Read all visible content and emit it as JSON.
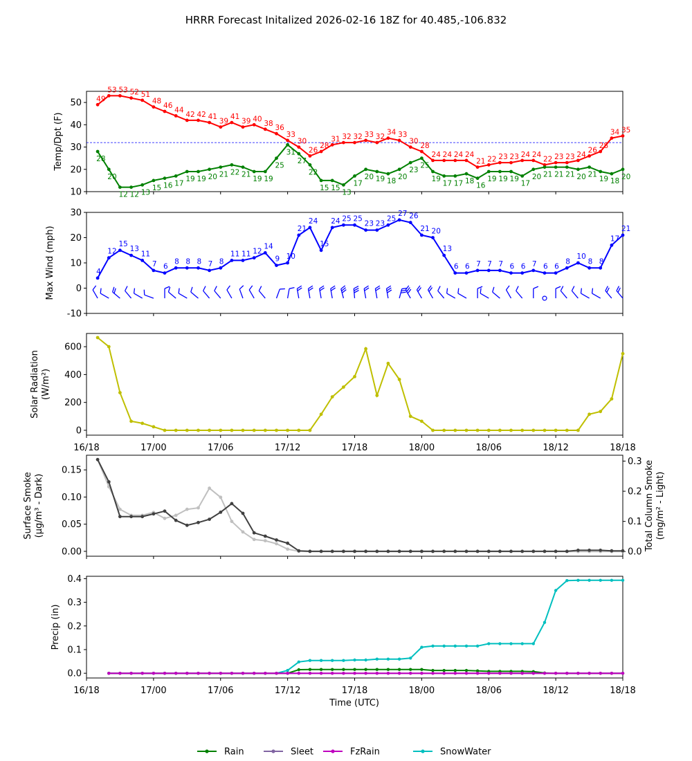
{
  "figure": {
    "title": "HRRR Forecast Initalized 2026-02-16 18Z for 40.485,-106.832",
    "x_axis_label": "Time (UTC)",
    "x_tick_labels": [
      "16/18",
      "17/00",
      "17/06",
      "17/12",
      "17/18",
      "18/00",
      "18/06",
      "18/12",
      "18/18"
    ],
    "x_range_hours": [
      0,
      48
    ]
  },
  "colors": {
    "temp": "#ff0000",
    "dewpoint": "#008000",
    "freezing_line": "#0000ff",
    "wind": "#0000ff",
    "solar": "#bfbf00",
    "smoke_dark": "#404040",
    "smoke_light": "#c0c0c0",
    "rain": "#008000",
    "sleet": "#8064a2",
    "fzrain": "#bf00bf",
    "snowwater": "#00bfbf"
  },
  "chart_data": [
    {
      "type": "line",
      "id": "temp",
      "ylabel": "Temp/Dpt (F)",
      "ylim": [
        10,
        55
      ],
      "yticks": [
        10,
        20,
        30,
        40,
        50
      ],
      "x_hours": [
        1,
        2,
        3,
        4,
        5,
        6,
        7,
        8,
        9,
        10,
        11,
        12,
        13,
        14,
        15,
        16,
        17,
        18,
        19,
        20,
        21,
        22,
        23,
        24,
        25,
        26,
        27,
        28,
        29,
        30,
        31,
        32,
        33,
        34,
        35,
        36,
        37,
        38,
        39,
        40,
        41,
        42,
        43,
        44,
        45,
        46,
        47,
        48
      ],
      "series": [
        {
          "name": "Temperature",
          "values": [
            49,
            53,
            53,
            52,
            51,
            48,
            46,
            44,
            42,
            42,
            41,
            39,
            41,
            39,
            40,
            38,
            36,
            33,
            30,
            26,
            28,
            31,
            32,
            32,
            33,
            32,
            34,
            33,
            30,
            28,
            24,
            24,
            24,
            24,
            21,
            22,
            23,
            23,
            24,
            24,
            22,
            23,
            23,
            24,
            26,
            28,
            34,
            35
          ]
        },
        {
          "name": "Dewpoint",
          "values": [
            28,
            20,
            12,
            12,
            13,
            15,
            16,
            17,
            19,
            19,
            20,
            21,
            22,
            21,
            19,
            19,
            25,
            31,
            27,
            22,
            15,
            15,
            13,
            17,
            20,
            19,
            18,
            20,
            23,
            25,
            19,
            17,
            17,
            18,
            16,
            19,
            19,
            19,
            17,
            20,
            21,
            21,
            21,
            20,
            21,
            19,
            18,
            20
          ]
        }
      ],
      "reference_line": {
        "value": 32,
        "style": "dashed"
      }
    },
    {
      "type": "line",
      "id": "wind",
      "ylabel": "Max Wind (mph)",
      "ylim": [
        -10,
        30
      ],
      "yticks": [
        -10,
        0,
        10,
        20,
        30
      ],
      "x_hours": [
        1,
        2,
        3,
        4,
        5,
        6,
        7,
        8,
        9,
        10,
        11,
        12,
        13,
        14,
        15,
        16,
        17,
        18,
        19,
        20,
        21,
        22,
        23,
        24,
        25,
        26,
        27,
        28,
        29,
        30,
        31,
        32,
        33,
        34,
        35,
        36,
        37,
        38,
        39,
        40,
        41,
        42,
        43,
        44,
        45,
        46,
        47,
        48
      ],
      "series": [
        {
          "name": "Max Wind",
          "values": [
            4,
            12,
            15,
            13,
            11,
            7,
            6,
            8,
            8,
            8,
            7,
            8,
            11,
            11,
            12,
            14,
            9,
            10,
            21,
            24,
            15,
            24,
            25,
            25,
            23,
            23,
            25,
            27,
            26,
            21,
            20,
            13,
            6,
            6,
            7,
            7,
            7,
            6,
            6,
            7,
            6,
            6,
            8,
            10,
            8,
            8,
            17,
            21
          ]
        }
      ],
      "wind_barbs_note": "wind direction barbs drawn along y=-4"
    },
    {
      "type": "line",
      "id": "solar",
      "ylabel": "Solar Radiation (W/m²)",
      "ylim": [
        -35,
        695
      ],
      "yticks": [
        0,
        200,
        400,
        600
      ],
      "x_hours": [
        1,
        2,
        3,
        4,
        5,
        6,
        7,
        8,
        9,
        10,
        11,
        12,
        13,
        14,
        15,
        16,
        17,
        18,
        19,
        20,
        21,
        22,
        23,
        24,
        25,
        26,
        27,
        28,
        29,
        30,
        31,
        32,
        33,
        34,
        35,
        36,
        37,
        38,
        39,
        40,
        41,
        42,
        43,
        44,
        45,
        46,
        47,
        48
      ],
      "series": [
        {
          "name": "Solar Radiation",
          "values": [
            665,
            600,
            270,
            65,
            50,
            25,
            0,
            0,
            0,
            0,
            0,
            0,
            0,
            0,
            0,
            0,
            0,
            0,
            0,
            0,
            115,
            240,
            310,
            385,
            585,
            250,
            480,
            365,
            100,
            65,
            0,
            0,
            0,
            0,
            0,
            0,
            0,
            0,
            0,
            0,
            0,
            0,
            0,
            0,
            115,
            135,
            225,
            550
          ]
        }
      ]
    },
    {
      "type": "line",
      "id": "smoke",
      "ylabel": "Surface Smoke (μg/m³ - Dark)",
      "ylabel_right": "Total Column Smoke (mg/m² - Light)",
      "ylim": [
        -0.009,
        0.177
      ],
      "yticks": [
        0.0,
        0.05,
        0.1,
        0.15
      ],
      "ylim_right": [
        -0.0155,
        0.3195
      ],
      "yticks_right": [
        0.0,
        0.1,
        0.2,
        0.3
      ],
      "x_hours": [
        1,
        2,
        3,
        4,
        5,
        6,
        7,
        8,
        9,
        10,
        11,
        12,
        13,
        14,
        15,
        16,
        17,
        18,
        19,
        20,
        21,
        22,
        23,
        24,
        25,
        26,
        27,
        28,
        29,
        30,
        31,
        32,
        33,
        34,
        35,
        36,
        37,
        38,
        39,
        40,
        41,
        42,
        43,
        44,
        45,
        46,
        47,
        48
      ],
      "series": [
        {
          "name": "Surface Smoke",
          "axis": "left",
          "values": [
            0.169,
            0.128,
            0.064,
            0.064,
            0.064,
            0.069,
            0.074,
            0.057,
            0.048,
            0.053,
            0.059,
            0.072,
            0.088,
            0.07,
            0.034,
            0.028,
            0.021,
            0.015,
            0.001,
            0,
            0,
            0,
            0,
            0,
            0,
            0,
            0,
            0,
            0,
            0,
            0,
            0,
            0,
            0,
            0,
            0,
            0,
            0,
            0,
            0,
            0,
            0,
            0,
            0.002,
            0.002,
            0.002,
            0.001,
            0.001
          ]
        },
        {
          "name": "Total Column Smoke",
          "axis": "right",
          "values": [
            0.305,
            0.215,
            0.14,
            0.12,
            0.12,
            0.13,
            0.11,
            0.12,
            0.14,
            0.145,
            0.21,
            0.18,
            0.1,
            0.065,
            0.04,
            0.036,
            0.026,
            0.008,
            0.001,
            0,
            0,
            0,
            0,
            0,
            0,
            0,
            0,
            0,
            0,
            0,
            0,
            0,
            0,
            0,
            0,
            0,
            0,
            0,
            0,
            0,
            0,
            0,
            0,
            0,
            0,
            0,
            0,
            0
          ]
        }
      ]
    },
    {
      "type": "line",
      "id": "precip",
      "ylabel": "Precip (in)",
      "ylim": [
        -0.02,
        0.41
      ],
      "yticks": [
        0.0,
        0.1,
        0.2,
        0.3,
        0.4
      ],
      "x_hours": [
        2,
        3,
        4,
        5,
        6,
        7,
        8,
        9,
        10,
        11,
        12,
        13,
        14,
        15,
        16,
        17,
        18,
        19,
        20,
        21,
        22,
        23,
        24,
        25,
        26,
        27,
        28,
        29,
        30,
        31,
        32,
        33,
        34,
        35,
        36,
        37,
        38,
        39,
        40,
        41,
        42,
        43,
        44,
        45,
        46,
        47,
        48
      ],
      "series": [
        {
          "name": "Rain",
          "values": [
            0,
            0,
            0,
            0,
            0,
            0,
            0,
            0,
            0,
            0,
            0,
            0,
            0,
            0,
            0,
            0,
            0,
            0.015,
            0.016,
            0.016,
            0.016,
            0.016,
            0.016,
            0.016,
            0.016,
            0.016,
            0.016,
            0.016,
            0.016,
            0.012,
            0.012,
            0.012,
            0.012,
            0.01,
            0.008,
            0.008,
            0.008,
            0.008,
            0.007,
            0.001,
            0,
            0,
            0,
            0,
            0,
            0,
            0
          ]
        },
        {
          "name": "Sleet",
          "values": [
            0,
            0,
            0,
            0,
            0,
            0,
            0,
            0,
            0,
            0,
            0,
            0,
            0,
            0,
            0,
            0,
            0,
            0,
            0,
            0,
            0,
            0,
            0,
            0,
            0,
            0,
            0,
            0,
            0,
            0,
            0,
            0,
            0,
            0,
            0,
            0,
            0,
            0,
            0,
            0,
            0,
            0,
            0,
            0,
            0,
            0,
            0
          ]
        },
        {
          "name": "FzRain",
          "values": [
            0,
            0,
            0,
            0,
            0,
            0,
            0,
            0,
            0,
            0,
            0,
            0,
            0,
            0,
            0,
            0,
            0,
            0,
            0,
            0,
            0,
            0,
            0,
            0,
            0,
            0,
            0,
            0,
            0,
            0,
            0,
            0,
            0,
            0,
            0,
            0,
            0,
            0,
            0,
            0,
            0,
            0,
            0,
            0,
            0,
            0,
            0
          ]
        },
        {
          "name": "SnowWater",
          "values": [
            0,
            0,
            0,
            0,
            0,
            0,
            0,
            0,
            0,
            0,
            0,
            0,
            0,
            0,
            0,
            0,
            0.012,
            0.048,
            0.054,
            0.054,
            0.054,
            0.054,
            0.056,
            0.056,
            0.06,
            0.06,
            0.06,
            0.064,
            0.11,
            0.115,
            0.115,
            0.115,
            0.115,
            0.115,
            0.125,
            0.125,
            0.125,
            0.125,
            0.125,
            0.215,
            0.35,
            0.392,
            0.393,
            0.393,
            0.393,
            0.393,
            0.393
          ]
        }
      ],
      "legend": [
        "Rain",
        "Sleet",
        "FzRain",
        "SnowWater"
      ],
      "legend_placement": "bottom-center"
    }
  ]
}
